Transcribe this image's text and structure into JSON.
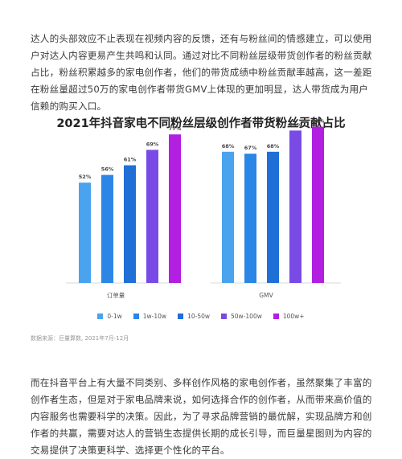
{
  "article": {
    "intro": "达人的头部效应不止表现在视频内容的反馈，还有与粉丝间的情感建立，可以使用户对达人内容更易产生共鸣和认同。通过对比不同粉丝层级带货创作者的粉丝贡献占比，粉丝积累越多的家电创作者，他们的带货成绩中粉丝贡献率越高，这一差距在粉丝量超过50万的家电创作者带货GMV上体现的更加明显，达人带货成为用户信赖的购买入口。",
    "outro": "而在抖音平台上有大量不同类别、多样创作风格的家电创作者，虽然聚集了丰富的创作者生态，但是对于家电品牌来说，如何选择合作的创作者，从而带来高价值的内容服务也需要科学的决策。因此，为了寻求品牌营销的最优解，实现品牌方和创作者的共赢，需要对达人的营销生态提供长期的成长引导，而巨量星图则为内容的交易提供了决策更科学、选择更个性化的平台。"
  },
  "chart_data": {
    "type": "bar",
    "title": "2021年抖音家电不同粉丝层级创作者带货粉丝贡献占比",
    "categories": [
      "订单量",
      "GMV"
    ],
    "series": [
      {
        "name": "0-1w",
        "values": [
          52,
          68
        ],
        "labels": [
          "52%",
          "68%"
        ],
        "color": "#4aa3ee"
      },
      {
        "name": "1w-10w",
        "values": [
          56,
          67
        ],
        "labels": [
          "56%",
          "67%"
        ],
        "color": "#2b86e6"
      },
      {
        "name": "10-50w",
        "values": [
          61,
          68
        ],
        "labels": [
          "61%",
          "68%"
        ],
        "color": "#1f6fd6"
      },
      {
        "name": "50w-100w",
        "values": [
          69,
          79
        ],
        "labels": [
          "69%",
          "79%"
        ],
        "color": "#7a4ae6"
      },
      {
        "name": "100w+",
        "values": [
          77,
          81
        ],
        "labels": [
          "77%",
          "81%"
        ],
        "color": "#b21fe0"
      }
    ],
    "ylim": [
      0,
      100
    ],
    "grid": false,
    "legend": "bottom",
    "source": "数据来源：巨量算数, 2021年7月-12月"
  }
}
